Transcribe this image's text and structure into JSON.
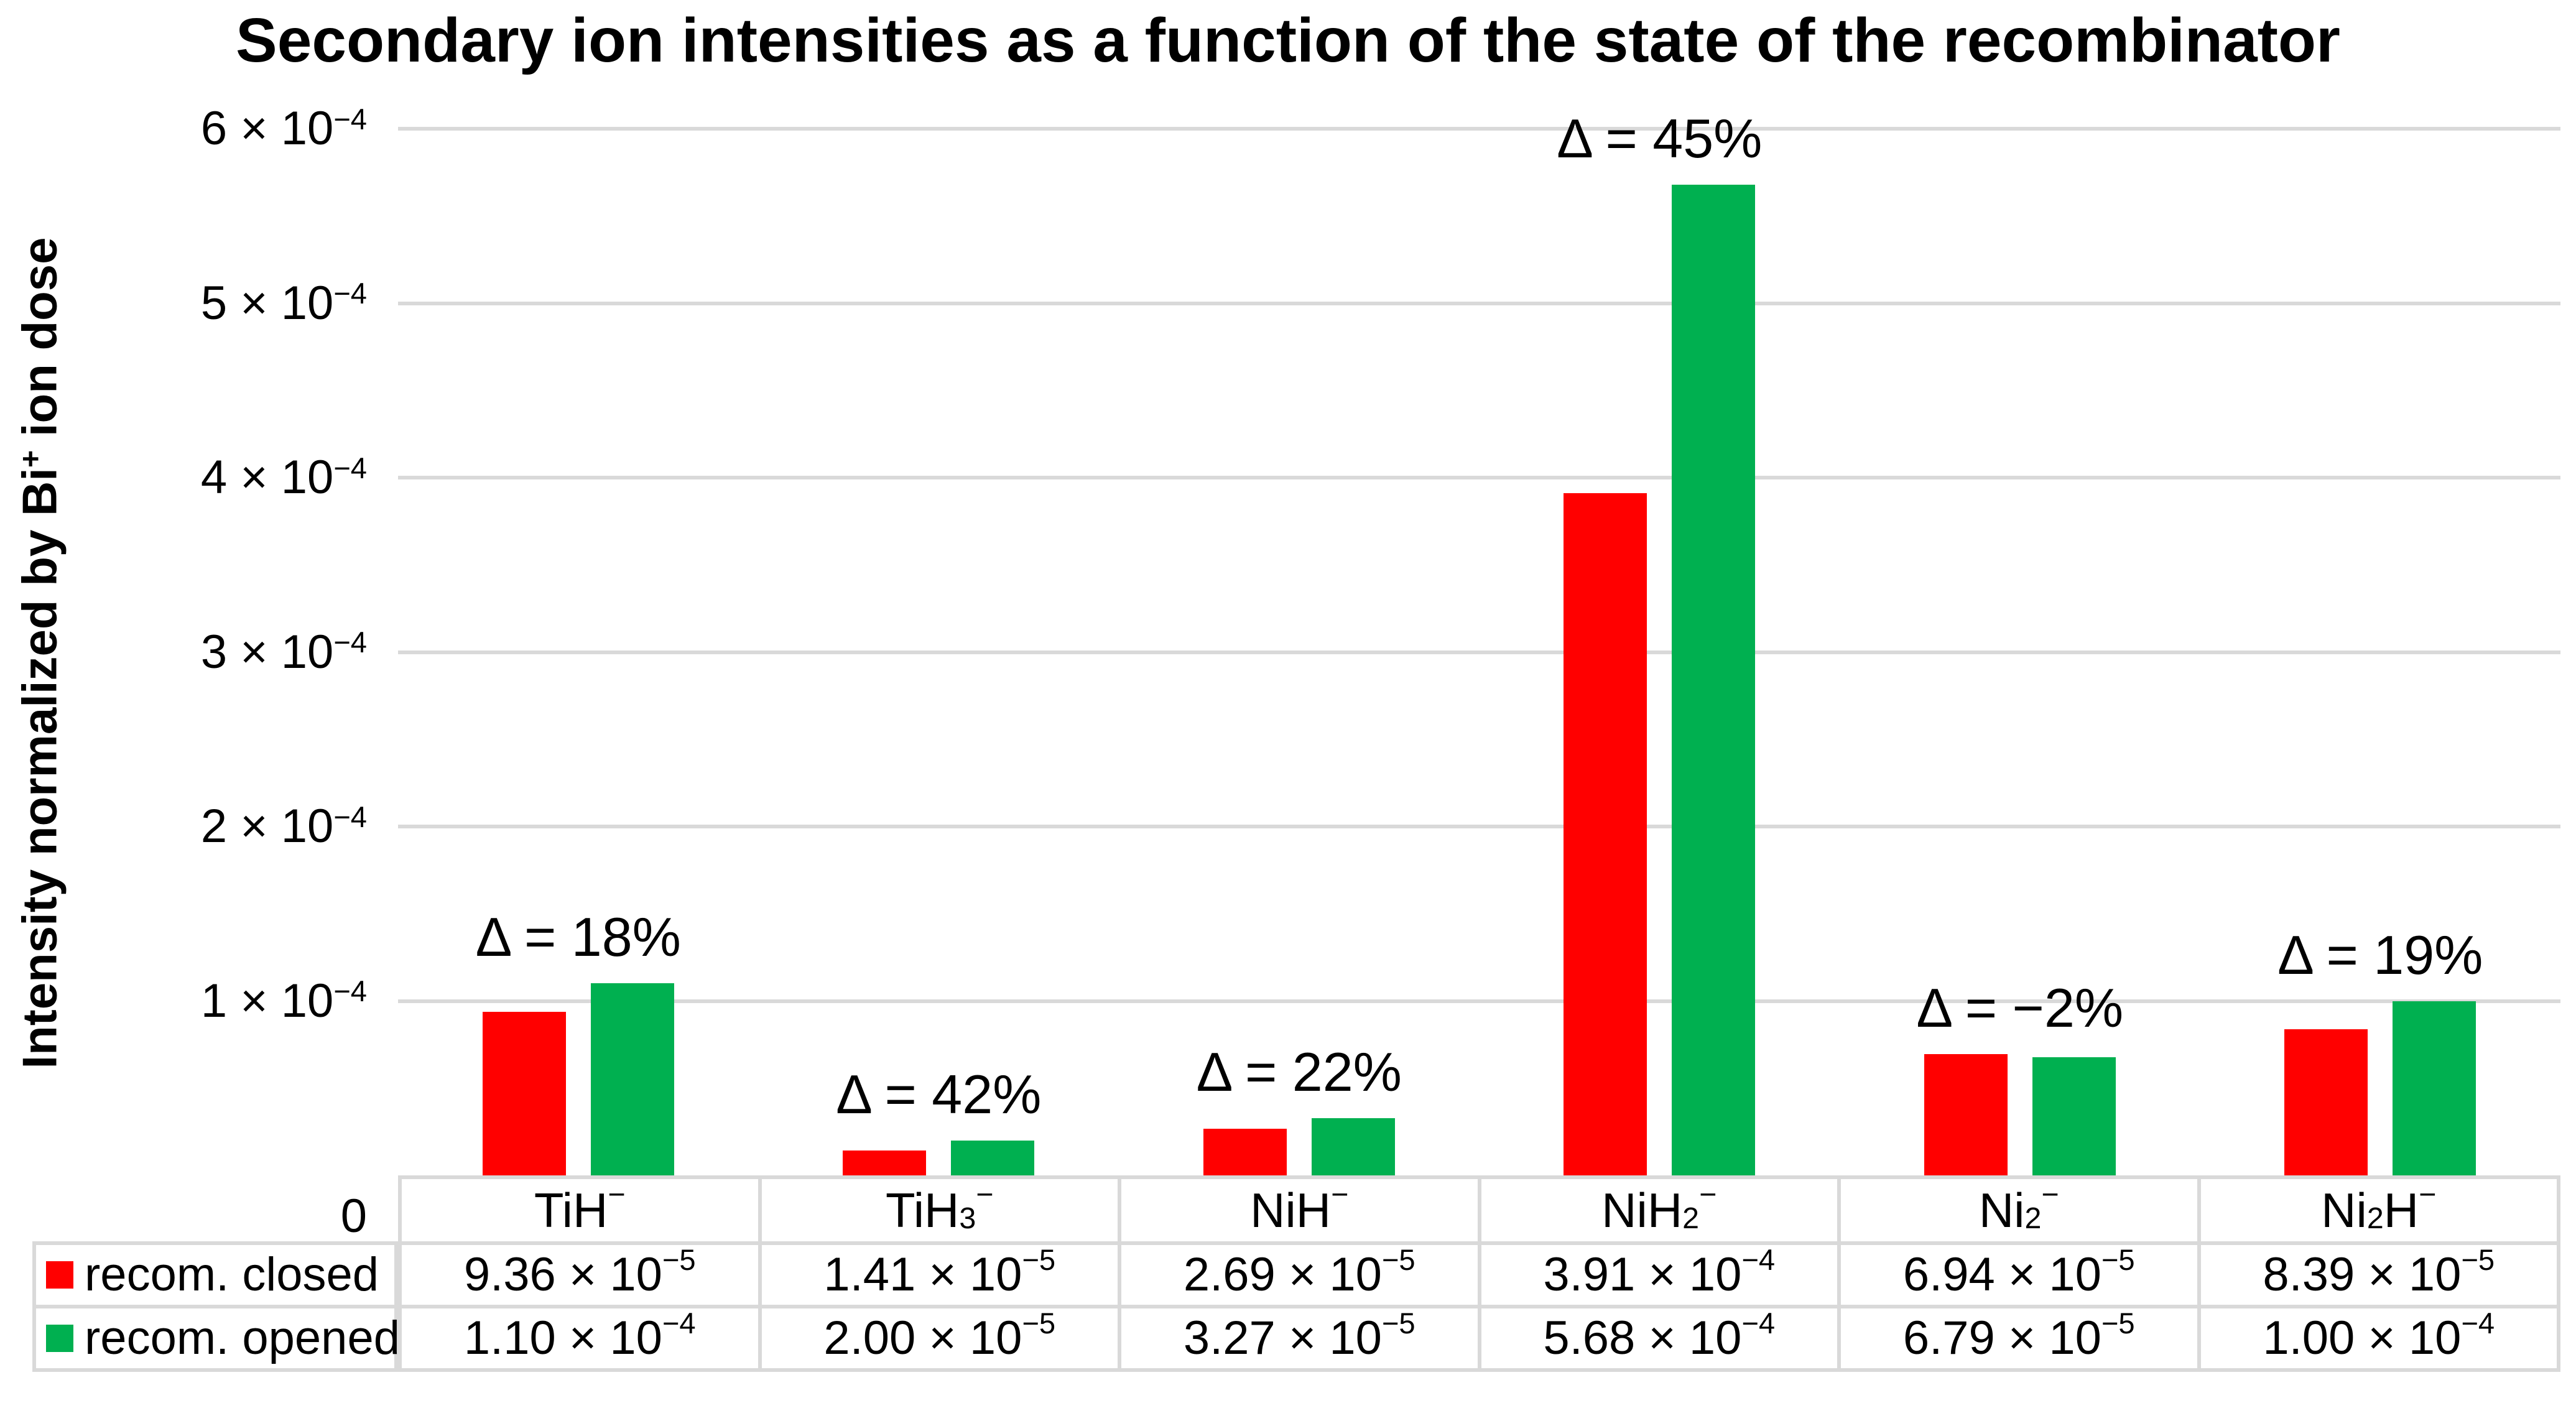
{
  "chart_data": {
    "type": "bar",
    "title": "Secondary ion intensities as a function of the state of the recombinator",
    "ylabel": "Intensity normalized by Bi+ ion dose",
    "xlabel": "",
    "categories": [
      "TiH−",
      "TiH3−",
      "NiH−",
      "NiH2−",
      "Ni2−",
      "Ni2H−"
    ],
    "series": [
      {
        "name": "recom. closed",
        "color": "#ff0000",
        "values": [
          9.36e-05,
          1.41e-05,
          2.69e-05,
          0.000391,
          6.94e-05,
          8.39e-05
        ]
      },
      {
        "name": "recom. opened",
        "color": "#00b050",
        "values": [
          0.00011,
          2e-05,
          3.27e-05,
          0.000568,
          6.79e-05,
          0.0001
        ]
      }
    ],
    "annotations": [
      "Δ = 18%",
      "Δ = 42%",
      "Δ = 22%",
      "Δ = 45%",
      "Δ = −2%",
      "Δ = 19%"
    ],
    "ylim": [
      0,
      0.0006
    ],
    "ytick_values": [
      0,
      0.0001,
      0.0002,
      0.0003,
      0.0004,
      0.0005,
      0.0006
    ],
    "grid": true,
    "gridline_color": "#d9d9d9",
    "legend_position": "table-left",
    "data_table_shown": true
  },
  "y_axis": {
    "title_parts": [
      {
        "t": "Intensity normalized by Bi"
      },
      {
        "sup": "+"
      },
      {
        "t": " ion dose"
      }
    ],
    "zero_label": "0",
    "tick_parts_desc": [
      [
        {
          "t": "6 × 10"
        },
        {
          "sup": "−4"
        }
      ],
      [
        {
          "t": "5 × 10"
        },
        {
          "sup": "−4"
        }
      ],
      [
        {
          "t": "4 × 10"
        },
        {
          "sup": "−4"
        }
      ],
      [
        {
          "t": "3 × 10"
        },
        {
          "sup": "−4"
        }
      ],
      [
        {
          "t": "2 × 10"
        },
        {
          "sup": "−4"
        }
      ],
      [
        {
          "t": "1 × 10"
        },
        {
          "sup": "−4"
        }
      ]
    ]
  },
  "table": {
    "category_parts": [
      [
        {
          "t": "TiH"
        },
        {
          "sup": "−"
        }
      ],
      [
        {
          "t": "TiH"
        },
        {
          "sub": "3"
        },
        {
          "sup": "−"
        }
      ],
      [
        {
          "t": "NiH"
        },
        {
          "sup": "−"
        }
      ],
      [
        {
          "t": "NiH"
        },
        {
          "sub": "2"
        },
        {
          "sup": "−"
        }
      ],
      [
        {
          "t": "Ni"
        },
        {
          "sub": "2"
        },
        {
          "sup": "−"
        }
      ],
      [
        {
          "t": "Ni"
        },
        {
          "sub": "2"
        },
        {
          "t": "H"
        },
        {
          "sup": "−"
        }
      ]
    ],
    "rows": [
      {
        "name": "recom. closed",
        "color": "#ff0000",
        "cell_parts": [
          [
            {
              "t": "9.36 × 10"
            },
            {
              "sup": "−5"
            }
          ],
          [
            {
              "t": "1.41 × 10"
            },
            {
              "sup": "−5"
            }
          ],
          [
            {
              "t": "2.69 × 10"
            },
            {
              "sup": "−5"
            }
          ],
          [
            {
              "t": "3.91 × 10"
            },
            {
              "sup": "−4"
            }
          ],
          [
            {
              "t": "6.94 × 10"
            },
            {
              "sup": "−5"
            }
          ],
          [
            {
              "t": "8.39 × 10"
            },
            {
              "sup": "−5"
            }
          ]
        ]
      },
      {
        "name": "recom. opened",
        "color": "#00b050",
        "cell_parts": [
          [
            {
              "t": "1.10 × 10"
            },
            {
              "sup": "−4"
            }
          ],
          [
            {
              "t": "2.00 × 10"
            },
            {
              "sup": "−5"
            }
          ],
          [
            {
              "t": "3.27 × 10"
            },
            {
              "sup": "−5"
            }
          ],
          [
            {
              "t": "5.68 × 10"
            },
            {
              "sup": "−4"
            }
          ],
          [
            {
              "t": "6.79 × 10"
            },
            {
              "sup": "−5"
            }
          ],
          [
            {
              "t": "1.00 × 10"
            },
            {
              "sup": "−4"
            }
          ]
        ]
      }
    ]
  }
}
